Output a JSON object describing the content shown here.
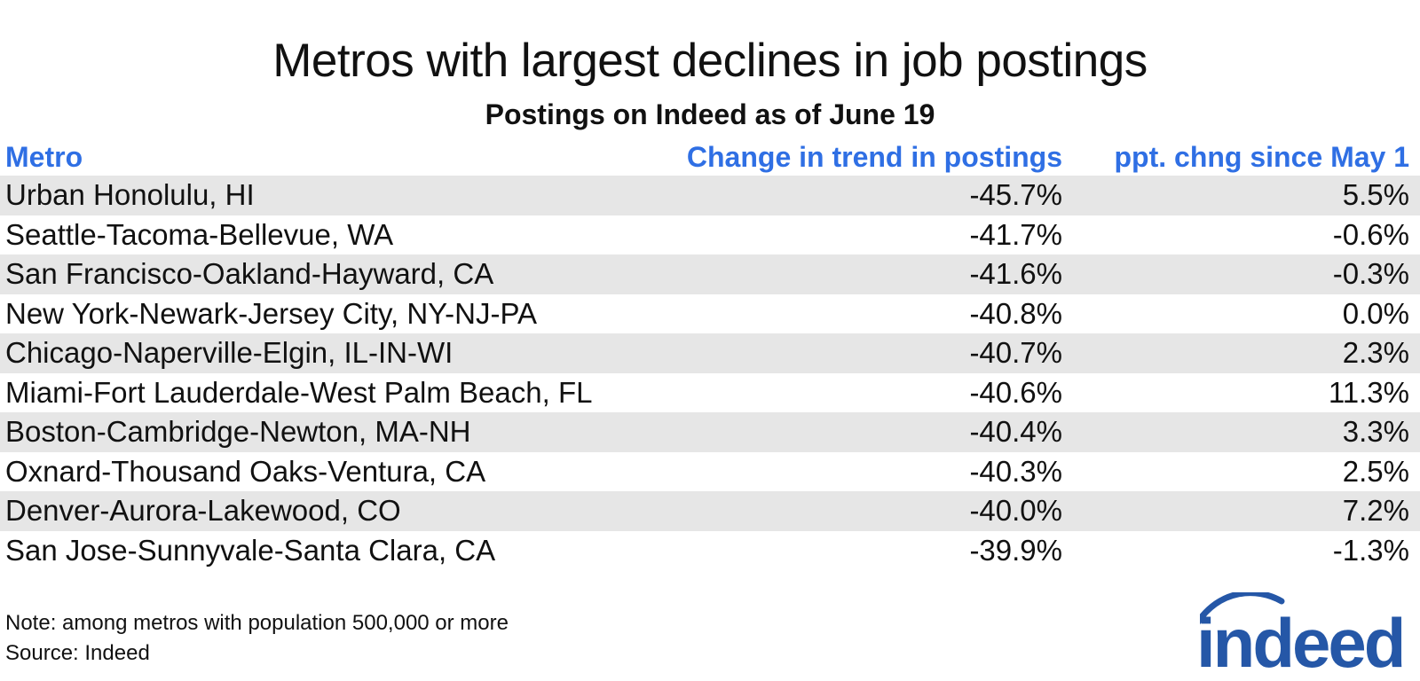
{
  "title": "Metros with largest declines in job postings",
  "subtitle": "Postings on Indeed as of June 19",
  "header_color": "#2f6fe4",
  "row_shade_color": "#e6e6e6",
  "columns": {
    "metro": "Metro",
    "change": "Change in trend in postings",
    "ppt": "ppt. chng since May 1"
  },
  "rows": [
    {
      "metro": "Urban Honolulu, HI",
      "change": "-45.7%",
      "ppt": "5.5%"
    },
    {
      "metro": "Seattle-Tacoma-Bellevue, WA",
      "change": "-41.7%",
      "ppt": "-0.6%"
    },
    {
      "metro": "San Francisco-Oakland-Hayward, CA",
      "change": "-41.6%",
      "ppt": "-0.3%"
    },
    {
      "metro": "New York-Newark-Jersey City, NY-NJ-PA",
      "change": "-40.8%",
      "ppt": "0.0%"
    },
    {
      "metro": "Chicago-Naperville-Elgin, IL-IN-WI",
      "change": "-40.7%",
      "ppt": "2.3%"
    },
    {
      "metro": "Miami-Fort Lauderdale-West Palm Beach, FL",
      "change": "-40.6%",
      "ppt": "11.3%"
    },
    {
      "metro": "Boston-Cambridge-Newton, MA-NH",
      "change": "-40.4%",
      "ppt": "3.3%"
    },
    {
      "metro": "Oxnard-Thousand Oaks-Ventura, CA",
      "change": "-40.3%",
      "ppt": "2.5%"
    },
    {
      "metro": "Denver-Aurora-Lakewood, CO",
      "change": "-40.0%",
      "ppt": "7.2%"
    },
    {
      "metro": "San Jose-Sunnyvale-Santa Clara, CA",
      "change": "-39.9%",
      "ppt": "-1.3%"
    }
  ],
  "note": "Note: among metros with population 500,000 or more",
  "source": "Source: Indeed",
  "logo": {
    "text": "indeed",
    "icon": "indeed-logo-icon",
    "color": "#2557a7"
  },
  "chart_data": {
    "type": "table",
    "title": "Metros with largest declines in job postings",
    "subtitle": "Postings on Indeed as of June 19",
    "columns": [
      "Metro",
      "Change in trend in postings",
      "ppt. chng since May 1"
    ],
    "rows": [
      [
        "Urban Honolulu, HI",
        -45.7,
        5.5
      ],
      [
        "Seattle-Tacoma-Bellevue, WA",
        -41.7,
        -0.6
      ],
      [
        "San Francisco-Oakland-Hayward, CA",
        -41.6,
        -0.3
      ],
      [
        "New York-Newark-Jersey City, NY-NJ-PA",
        -40.8,
        0.0
      ],
      [
        "Chicago-Naperville-Elgin, IL-IN-WI",
        -40.7,
        2.3
      ],
      [
        "Miami-Fort Lauderdale-West Palm Beach, FL",
        -40.6,
        11.3
      ],
      [
        "Boston-Cambridge-Newton, MA-NH",
        -40.4,
        3.3
      ],
      [
        "Oxnard-Thousand Oaks-Ventura, CA",
        -40.3,
        2.5
      ],
      [
        "Denver-Aurora-Lakewood, CO",
        -40.0,
        7.2
      ],
      [
        "San Jose-Sunnyvale-Santa Clara, CA",
        -39.9,
        -1.3
      ]
    ]
  }
}
